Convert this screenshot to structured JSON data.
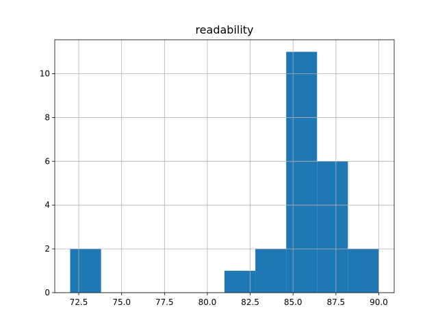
{
  "chart_data": {
    "type": "bar",
    "title": "readability",
    "xlabel": "",
    "ylabel": "",
    "bins": [
      {
        "start": 72.0,
        "end": 73.8,
        "count": 2
      },
      {
        "start": 73.8,
        "end": 75.6,
        "count": 0
      },
      {
        "start": 75.6,
        "end": 77.4,
        "count": 0
      },
      {
        "start": 77.4,
        "end": 79.2,
        "count": 0
      },
      {
        "start": 79.2,
        "end": 81.0,
        "count": 0
      },
      {
        "start": 81.0,
        "end": 82.8,
        "count": 1
      },
      {
        "start": 82.8,
        "end": 84.6,
        "count": 2
      },
      {
        "start": 84.6,
        "end": 86.4,
        "count": 11
      },
      {
        "start": 86.4,
        "end": 88.2,
        "count": 6
      },
      {
        "start": 88.2,
        "end": 90.0,
        "count": 2
      }
    ],
    "xlim": [
      71.1,
      90.9
    ],
    "ylim": [
      0,
      11.55
    ],
    "xticks": [
      72.5,
      75.0,
      77.5,
      80.0,
      82.5,
      85.0,
      87.5,
      90.0
    ],
    "xtick_labels": [
      "72.5",
      "75.0",
      "77.5",
      "80.0",
      "82.5",
      "85.0",
      "87.5",
      "90.0"
    ],
    "yticks": [
      0,
      2,
      4,
      6,
      8,
      10
    ],
    "ytick_labels": [
      "0",
      "2",
      "4",
      "6",
      "8",
      "10"
    ],
    "grid": true,
    "bar_color": "#1f77b4"
  }
}
